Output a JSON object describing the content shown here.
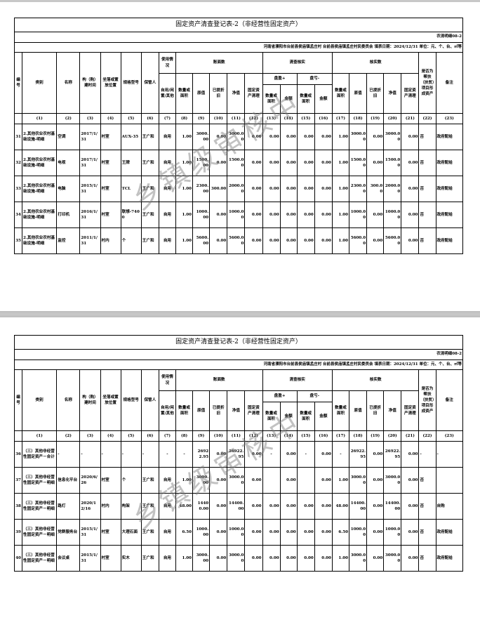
{
  "header": {
    "no": "编号",
    "category": "类别",
    "name": "名称",
    "date": "构（购）建时间",
    "location": "坐落或置放位置",
    "spec": "规格型号",
    "keeper": "保管人",
    "usage_group": "使用情况",
    "usage": "自用/闲置/其他",
    "book_group": "账面数",
    "verify_group": "清查核实",
    "actual_group": "核实数",
    "qty": "数量或面积",
    "orig": "原值",
    "depr": "已提折旧",
    "net": "净值",
    "clear": "固定资产清理",
    "surplus": "盘盈+",
    "loss": "盘亏-",
    "amount": "金额",
    "poverty": "是否为帮扶（扶贫）项目形成资产",
    "remark": "备注",
    "index": [
      "(1)",
      "(2)",
      "(3)",
      "(4)",
      "(5)",
      "(6)",
      "(7)",
      "(8)",
      "(9)",
      "(10)",
      "(11)",
      "(12)",
      "(13)",
      "(14)",
      "(15)",
      "(16)",
      "(17)",
      "(18)",
      "(19)",
      "(20)",
      "(21)",
      "(22)",
      "(23)"
    ]
  },
  "watermark": "乡镇级审核中",
  "pages": [
    {
      "title": "固定资产清查登记表-2（非经营性固定资产）",
      "code": "农清明细08-2",
      "info": "河南省濮阳市台前县侯庙镇孟庄村   台前县侯庙镇孟庄村民委员会  填表日期：2024/12/31  单位：元、个、台、㎡等",
      "rows": [
        {
          "no": "31",
          "category": "2.其他农业农村基础设施-明细",
          "name": "空调",
          "date": "2017/1/31",
          "location": "村室",
          "spec": "AUX-35",
          "keeper": "王广和",
          "usage": "自用",
          "values": [
            "1.00",
            "3000.00",
            "0.00",
            "3000.00",
            "0.00",
            "0.00",
            "0.00",
            "0.00",
            "0.00",
            "1.00",
            "3000.00",
            "0.00",
            "3000.00",
            "0.00",
            "否",
            "政府配给"
          ]
        },
        {
          "no": "32",
          "category": "2.其他农业农村基础设施-明细",
          "name": "电视",
          "date": "2017/1/31",
          "location": "村室",
          "spec": "王牌",
          "keeper": "王广和",
          "usage": "自用",
          "values": [
            "1.00",
            "1500.00",
            "0.00",
            "1500.00",
            "0.00",
            "0.00",
            "0.00",
            "0.00",
            "0.00",
            "1.00",
            "1500.00",
            "0.00",
            "1500.00",
            "0.00",
            "否",
            "政府配给"
          ]
        },
        {
          "no": "33",
          "category": "2.其他农业农村基础设施-明细",
          "name": "电脑",
          "date": "2015/1/31",
          "location": "村室",
          "spec": "TCL",
          "keeper": "王广和",
          "usage": "自用",
          "values": [
            "1.00",
            "2300.00",
            "300.00",
            "2000.00",
            "0.00",
            "0.00",
            "0.00",
            "0.00",
            "0.00",
            "1.00",
            "2300.00",
            "300.00",
            "2000.00",
            "0.00",
            "否",
            "政府配给"
          ]
        },
        {
          "no": "34",
          "category": "2.其他农业农村基础设施-明细",
          "name": "打印机",
          "date": "2016/1/31",
          "location": "村室",
          "spec": "联想-7400",
          "keeper": "王广和",
          "usage": "自用",
          "values": [
            "1.00",
            "1000.00",
            "0.00",
            "1000.00",
            "0.00",
            "0.00",
            "0.00",
            "0.00",
            "0.00",
            "1.00",
            "1000.00",
            "0.00",
            "1000.00",
            "0.00",
            "否",
            "政府配给"
          ]
        },
        {
          "no": "35",
          "category": "2.其他农业农村基础设施-明细",
          "name": "监控",
          "date": "2011/1/31",
          "location": "村内",
          "spec": "个",
          "keeper": "王广和",
          "usage": "自用",
          "values": [
            "1.00",
            "5600.00",
            "0.00",
            "5600.00",
            "0.00",
            "0.00",
            "0.00",
            "0.00",
            "0.00",
            "1.00",
            "5600.00",
            "0.00",
            "5600.00",
            "0.00",
            "否",
            "政府配给"
          ]
        }
      ]
    },
    {
      "title": "固定资产清查登记表-2（非经营性固定资产）",
      "code": "农清明细08-2",
      "info": "河南省濮阳市台前县侯庙镇孟庄村   台前县侯庙镇孟庄村民委员会  填表日期：2024/12/31  单位：元、个、台、㎡等",
      "rows": [
        {
          "no": "36",
          "category": "（三）其他非经营性固定资产－合计",
          "name": "-",
          "date": "-",
          "location": "-",
          "spec": "-",
          "keeper": "-",
          "usage": "-",
          "values": [
            "-",
            "26922.95",
            "0.00",
            "26922.95",
            "0.00",
            "-",
            "0.00",
            "-",
            "0.00",
            "-",
            "26922.95",
            "0.00",
            "26922.95",
            "0.00",
            "-",
            "-"
          ]
        },
        {
          "no": "37",
          "category": "（三）其他非经营性固定资产－明细",
          "name": "信息化平台",
          "date": "2020/6/26",
          "location": "村室",
          "spec": "个",
          "keeper": "王广和",
          "usage": "自用",
          "values": [
            "1.00",
            "3000.00",
            "0.00",
            "3000.00",
            "0.00",
            "",
            "0.00",
            "",
            "0.00",
            "1.00",
            "3000.00",
            "0.00",
            "3000.00",
            "0.00",
            "否",
            ""
          ]
        },
        {
          "no": "38",
          "category": "（三）其他非经营性固定资产－明细",
          "name": "路灯",
          "date": "2020/12/16",
          "location": "村内",
          "spec": "构架",
          "keeper": "王广和",
          "usage": "自用",
          "values": [
            "48.00",
            "14400.00",
            "0.00",
            "14400.00",
            "0.00",
            "0.00",
            "0.00",
            "0.00",
            "0.00",
            "48.00",
            "14400.00",
            "0.00",
            "14400.00",
            "0.00",
            "否",
            "自购"
          ]
        },
        {
          "no": "39",
          "category": "（三）其他非经营性固定资产－明细",
          "name": "党群服务台",
          "date": "2015/1/31",
          "location": "村室",
          "spec": "大理石面",
          "keeper": "王广和",
          "usage": "自用",
          "values": [
            "6.50",
            "1000.00",
            "0.00",
            "1000.00",
            "0.00",
            "0.00",
            "0.00",
            "0.00",
            "0.00",
            "6.50",
            "1000.00",
            "0.00",
            "1000.00",
            "0.00",
            "否",
            "政府配给"
          ]
        },
        {
          "no": "40",
          "category": "（三）其他非经营性固定资产－明细",
          "name": "会议桌",
          "date": "2015/1/31",
          "location": "村室",
          "spec": "实木",
          "keeper": "王广和",
          "usage": "自用",
          "values": [
            "1.00",
            "3000.00",
            "0.00",
            "3000.00",
            "0.00",
            "0.00",
            "0.00",
            "0.00",
            "0.00",
            "1.00",
            "3000.00",
            "0.00",
            "3000.00",
            "0.00",
            "否",
            "政府配给"
          ]
        }
      ]
    }
  ]
}
